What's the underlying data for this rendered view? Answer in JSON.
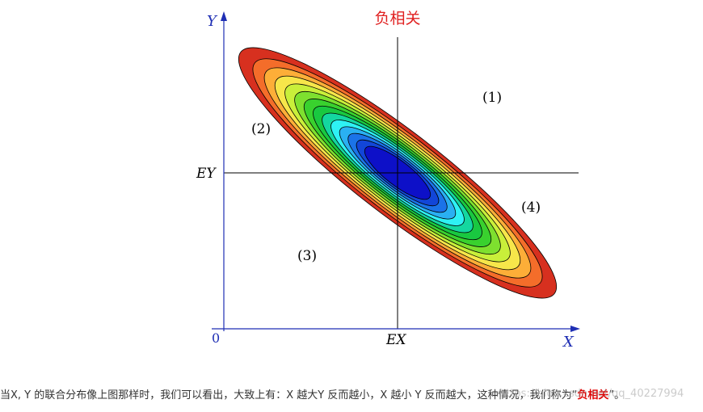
{
  "figure": {
    "title": "负相关",
    "y_axis_label": "Y",
    "x_axis_label": "X",
    "origin_label": "0",
    "ex_label": "EX",
    "ey_label": "EY",
    "regions": [
      "(1)",
      "(2)",
      "(3)",
      "(4)"
    ],
    "contour_colors": [
      "#d7301f",
      "#f46d2a",
      "#fdae38",
      "#f7e64a",
      "#c9ef3a",
      "#7ee02f",
      "#39d12e",
      "#19c840",
      "#14d7a0",
      "#2ef1f4",
      "#2ab0f2",
      "#1b73e8",
      "#1246d8",
      "#0d10c8"
    ],
    "axis_color": "#1f2fb4",
    "title_color": "#e02020"
  },
  "caption": {
    "prefix": "当X, Y 的联合分布像上图那样时，我们可以看出，大致上有：X 越大Y 反而越小，X 越小 Y 反而越大，这种情况，我们称为“",
    "highlight": "负相关",
    "suffix": "”。",
    "watermark": "https://blog.csdn.net/qq_40227994"
  }
}
